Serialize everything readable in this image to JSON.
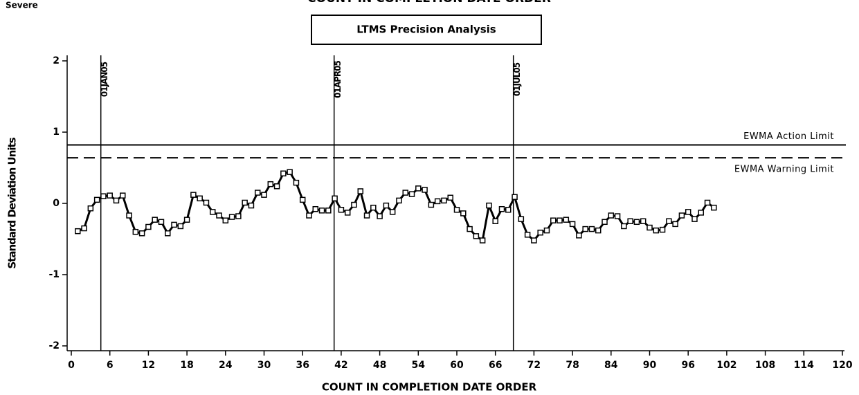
{
  "chart_data": {
    "type": "line",
    "title": "COUNT IN COMPLETION DATE ORDER",
    "corner_label": "Severe",
    "box_label": "LTMS Precision Analysis",
    "xlabel": "COUNT IN COMPLETION DATE ORDER",
    "ylabel": "Standard Deviation Units",
    "x": [
      1,
      2,
      3,
      4,
      5,
      6,
      7,
      8,
      9,
      10,
      11,
      12,
      13,
      14,
      15,
      16,
      17,
      18,
      19,
      20,
      21,
      22,
      23,
      24,
      25,
      26,
      27,
      28,
      29,
      30,
      31,
      32,
      33,
      34,
      35,
      36,
      37,
      38,
      39,
      40,
      41,
      42,
      43,
      44,
      45,
      46,
      47,
      48,
      49,
      50,
      51,
      52,
      53,
      54,
      55,
      56,
      57,
      58,
      59,
      60,
      61,
      62,
      63,
      64,
      65,
      66,
      67,
      68,
      69,
      70,
      71,
      72,
      73,
      74,
      75,
      76,
      77,
      78,
      79,
      80,
      81,
      82,
      83,
      84,
      85,
      86,
      87,
      88,
      89,
      90,
      91,
      92,
      93,
      94,
      95,
      96,
      97,
      98,
      99,
      100
    ],
    "series": [
      {
        "name": "EWMA",
        "color": "#000000",
        "values": [
          -0.39,
          -0.35,
          -0.07,
          0.05,
          0.1,
          0.11,
          0.04,
          0.11,
          -0.17,
          -0.4,
          -0.42,
          -0.33,
          -0.23,
          -0.26,
          -0.42,
          -0.3,
          -0.32,
          -0.23,
          0.12,
          0.07,
          0.01,
          -0.12,
          -0.17,
          -0.24,
          -0.19,
          -0.18,
          0.01,
          -0.03,
          0.15,
          0.12,
          0.27,
          0.24,
          0.42,
          0.44,
          0.29,
          0.05,
          -0.17,
          -0.08,
          -0.1,
          -0.1,
          0.07,
          -0.09,
          -0.13,
          -0.02,
          0.17,
          -0.17,
          -0.06,
          -0.18,
          -0.03,
          -0.12,
          0.04,
          0.15,
          0.13,
          0.21,
          0.19,
          -0.02,
          0.03,
          0.04,
          0.08,
          -0.09,
          -0.14,
          -0.36,
          -0.46,
          -0.52,
          -0.03,
          -0.25,
          -0.08,
          -0.09,
          0.09,
          -0.22,
          -0.44,
          -0.52,
          -0.41,
          -0.38,
          -0.24,
          -0.24,
          -0.23,
          -0.29,
          -0.45,
          -0.36,
          -0.36,
          -0.38,
          -0.26,
          -0.17,
          -0.18,
          -0.32,
          -0.25,
          -0.26,
          -0.25,
          -0.34,
          -0.38,
          -0.37,
          -0.25,
          -0.29,
          -0.17,
          -0.12,
          -0.22,
          -0.13,
          0.01,
          -0.06
        ]
      }
    ],
    "hlines": [
      {
        "value": 0.82,
        "label": "EWMA Action Limit",
        "style": "solid"
      },
      {
        "value": 0.64,
        "label": "EWMA Warning Limit",
        "style": "dashed"
      }
    ],
    "vlines": [
      {
        "value": 4.6,
        "label": "01JAN05"
      },
      {
        "value": 40.9,
        "label": "01APR05"
      },
      {
        "value": 68.8,
        "label": "01JUL05"
      }
    ],
    "xlim": [
      0,
      120
    ],
    "xticks": [
      0,
      6,
      12,
      18,
      24,
      30,
      36,
      42,
      48,
      54,
      60,
      66,
      72,
      78,
      84,
      90,
      96,
      102,
      108,
      114,
      120
    ],
    "ylim": [
      -2,
      2
    ],
    "yticks": [
      -2,
      -1,
      0,
      1,
      2
    ]
  }
}
